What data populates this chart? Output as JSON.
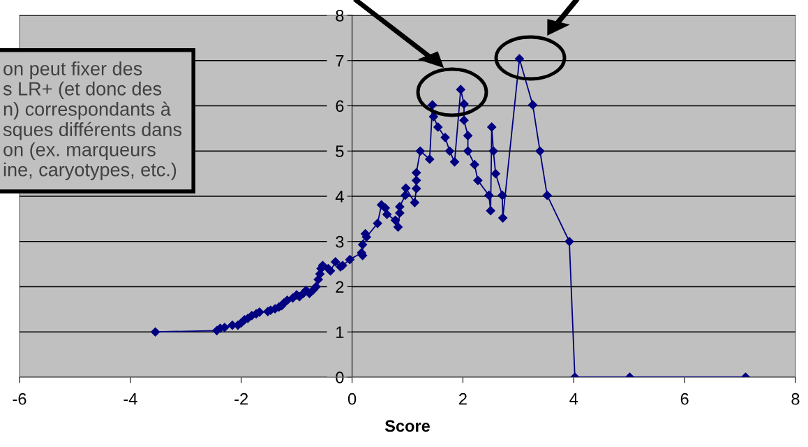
{
  "chart_data": {
    "type": "line",
    "xlabel": "Score",
    "x": [
      -3.55,
      -2.44,
      -2.38,
      -2.3,
      -2.16,
      -2.06,
      -2.0,
      -1.94,
      -1.88,
      -1.81,
      -1.73,
      -1.67,
      -1.52,
      -1.47,
      -1.39,
      -1.32,
      -1.27,
      -1.23,
      -1.17,
      -1.07,
      -1.0,
      -0.95,
      -0.88,
      -0.83,
      -0.77,
      -0.7,
      -0.65,
      -0.61,
      -0.58,
      -0.56,
      -0.53,
      -0.43,
      -0.39,
      -0.3,
      -0.21,
      -0.17,
      -0.04,
      0.17,
      0.19,
      0.19,
      0.24,
      0.26,
      0.46,
      0.53,
      0.6,
      0.63,
      0.78,
      0.83,
      0.86,
      0.86,
      0.96,
      0.97,
      1.13,
      1.16,
      1.16,
      1.16,
      1.23,
      1.4,
      1.45,
      1.47,
      1.55,
      1.68,
      1.76,
      1.85,
      1.96,
      2.02,
      2.02,
      2.09,
      2.09,
      2.21,
      2.27,
      2.47,
      2.5,
      2.52,
      2.55,
      2.59,
      2.71,
      2.72,
      3.02,
      3.26,
      3.39,
      3.52,
      3.92,
      4.02,
      5.01,
      7.1
    ],
    "series": [
      {
        "color": "#000080",
        "values": [
          1.0,
          1.03,
          1.08,
          1.1,
          1.15,
          1.15,
          1.2,
          1.27,
          1.3,
          1.36,
          1.4,
          1.44,
          1.45,
          1.48,
          1.51,
          1.55,
          1.58,
          1.64,
          1.7,
          1.75,
          1.82,
          1.78,
          1.85,
          1.92,
          1.85,
          1.93,
          2.0,
          2.16,
          2.28,
          2.4,
          2.47,
          2.4,
          2.35,
          2.55,
          2.44,
          2.47,
          2.6,
          2.75,
          2.69,
          2.93,
          3.17,
          3.1,
          3.4,
          3.81,
          3.74,
          3.6,
          3.47,
          3.32,
          3.63,
          3.77,
          4.02,
          4.18,
          3.86,
          4.17,
          4.35,
          4.52,
          5.0,
          4.82,
          6.02,
          5.76,
          5.53,
          5.3,
          5.0,
          4.76,
          6.36,
          6.04,
          5.68,
          5.34,
          5.0,
          4.7,
          4.35,
          4.02,
          3.68,
          5.53,
          5.0,
          4.5,
          4.02,
          3.52,
          7.04,
          6.02,
          5.0,
          4.02,
          3.0,
          0,
          0,
          0
        ]
      }
    ],
    "xlim": [
      -6,
      8
    ],
    "xticks": [
      -6,
      -4,
      -2,
      0,
      2,
      4,
      6,
      8
    ],
    "ylim": [
      0,
      8
    ],
    "yticks": [
      0,
      1,
      2,
      3,
      4,
      5,
      6,
      7,
      8
    ],
    "grid": "y",
    "marker": "diamond",
    "line_style": "solid",
    "annotations": [
      "on peut fixer des\ns LR+ (et donc des\nn) correspondants à\nsques différents dans\non (ex. marqueurs\nine, caryotypes, etc.)"
    ]
  }
}
